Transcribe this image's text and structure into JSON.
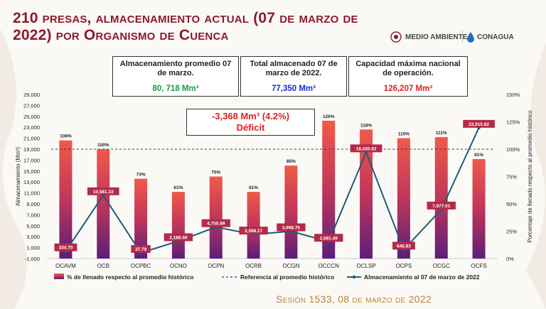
{
  "title": "210 presas, almacenamiento actual (07 de marzo de 2022) por Organismo de Cuenca",
  "logos": {
    "medio_ambiente": "MEDIO AMBIENTE",
    "conagua": "CONAGUA"
  },
  "boxes": [
    {
      "label": "Almacenamiento promedio 07 de marzo.",
      "value": "80, 718 Mm³",
      "color": "#1a9a4a"
    },
    {
      "label": "Total almacenado 07 de marzo de 2022.",
      "value": "77,350 Mm³",
      "color": "#1a2ad6"
    },
    {
      "label": "Capacidad máxima nacional de operación.",
      "value": "126,207 Mm³",
      "color": "#e02020"
    }
  ],
  "deficit": {
    "line1": "-3,368 Mm³ (4.2%)",
    "line2": "Déficit"
  },
  "session": "Sesión 1533, 08 de marzo de 2022",
  "chart_data": {
    "type": "bar",
    "categories": [
      "OCAVM",
      "OCB",
      "OCPBC",
      "OCNO",
      "OCPN",
      "OCRB",
      "OCGN",
      "OCCCN",
      "OCLSP",
      "OCPS",
      "OCGC",
      "OCFS"
    ],
    "series": [
      {
        "name": "% de llenado respecto al promedio histórico",
        "axis": "right",
        "values": [
          108,
          100,
          73,
          61,
          75,
          61,
          85,
          126,
          118,
          110,
          111,
          91
        ],
        "labels": [
          "108%",
          "100%",
          "73%",
          "61%",
          "75%",
          "61%",
          "85%",
          "126%",
          "118%",
          "110%",
          "111%",
          "91%"
        ]
      },
      {
        "name": "Referencia al promedio histórico",
        "axis": "right",
        "type": "line",
        "value": 100
      },
      {
        "name": "Almacenamiento al 07 de marzo de 2022",
        "axis": "left",
        "type": "line",
        "values": [
          334.7,
          10581.33,
          37.79,
          2186.6,
          4755.89,
          3398.17,
          3998.76,
          2081.49,
          18435.82,
          646.83,
          7977.01,
          22915.82
        ],
        "labels": [
          "334.70",
          "10,581.33",
          "37.79",
          "2,186.60",
          "4,755.89",
          "3,398.17",
          "3,998.76",
          "2,081.49",
          "18,435.82",
          "646.83",
          "7,977.01",
          "22,915.82"
        ]
      }
    ],
    "ylabel_left": "Almacenamiento (Mm³)",
    "ylabel_right": "Porcentaje de llenado respecto al promedio histórico",
    "ylim_left": [
      -1000,
      29000
    ],
    "yticks_left": [
      "29,000",
      "27,000",
      "25,000",
      "23,000",
      "21,000",
      "19,000",
      "17,000",
      "15,000",
      "13,000",
      "11,000",
      "9,000",
      "7,000",
      "5,000",
      "3,000",
      "1,000",
      "-1,000"
    ],
    "yticks_left_values": [
      29000,
      27000,
      25000,
      23000,
      21000,
      19000,
      17000,
      15000,
      13000,
      11000,
      9000,
      7000,
      5000,
      3000,
      1000,
      -1000
    ],
    "ylim_right": [
      0,
      150
    ],
    "yticks_right": [
      "150%",
      "125%",
      "100%",
      "75%",
      "50%",
      "25%",
      "0%"
    ],
    "yticks_right_values": [
      150,
      125,
      100,
      75,
      50,
      25,
      0
    ],
    "colors": {
      "bar_top": "#f05a4a",
      "bar_bottom": "#5b1e7a",
      "line": "#1f5b7a",
      "label_bg": "#b52a4a",
      "ref": "#2a3a6a"
    }
  }
}
